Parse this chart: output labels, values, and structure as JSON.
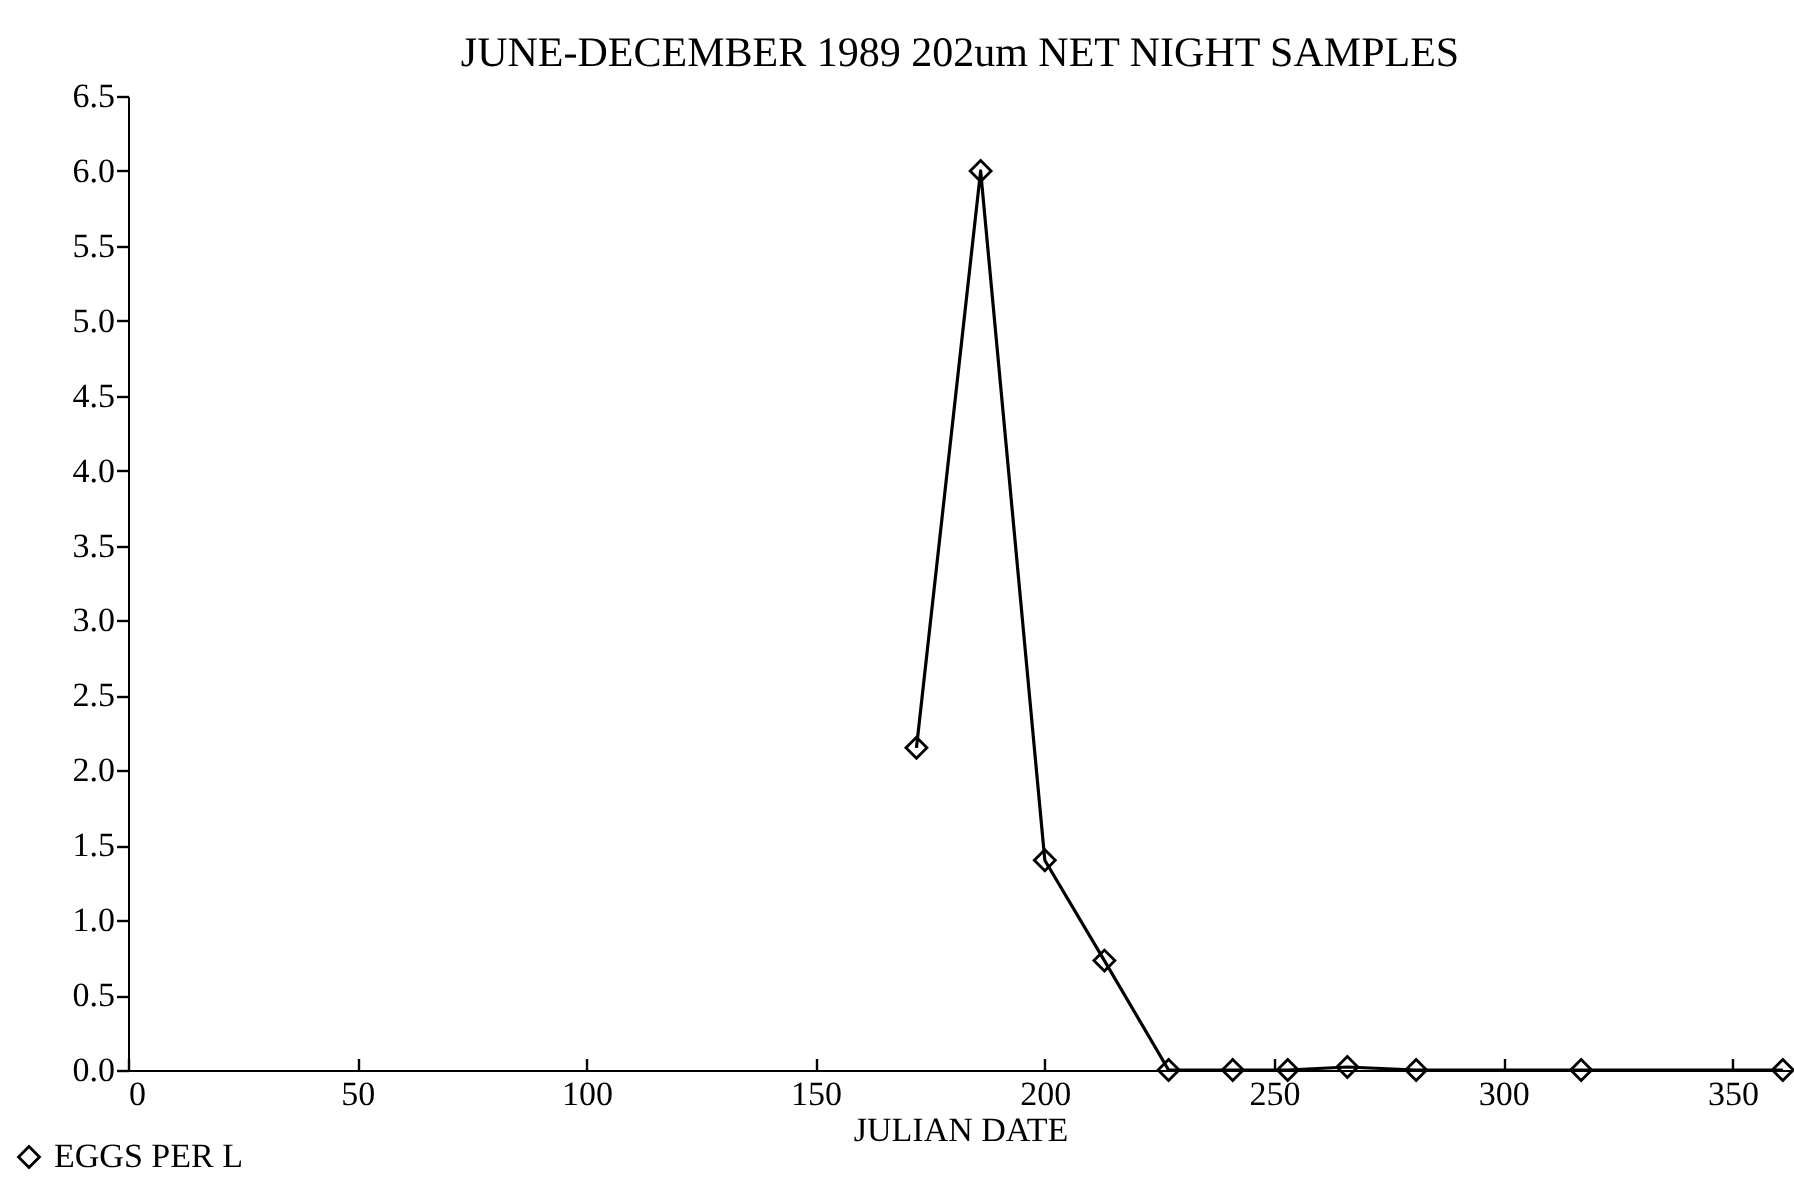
{
  "chart_data": {
    "type": "line",
    "title": "JUNE-DECEMBER 1989 202um NET NIGHT SAMPLES",
    "xlabel": "JULIAN DATE",
    "x": [
      172,
      186,
      200,
      213,
      227,
      241,
      253,
      266,
      281,
      317,
      361
    ],
    "series": [
      {
        "name": "EGGS PER L",
        "color": "#000000",
        "values": [
          2.15,
          6.0,
          1.4,
          0.73,
          0,
          0,
          0,
          0.02,
          0,
          0,
          0
        ]
      }
    ],
    "xlim": [
      0,
      363
    ],
    "xticks": [
      0,
      50,
      100,
      150,
      200,
      250,
      300,
      350
    ],
    "ylim": [
      0,
      6.5
    ],
    "yticks": [
      {
        "value": 0,
        "label": "0.0"
      },
      {
        "value": 0.5,
        "label": "0.5"
      },
      {
        "value": 1,
        "label": "1.0"
      },
      {
        "value": 1.5,
        "label": "1.5"
      },
      {
        "value": 2,
        "label": "2.0"
      },
      {
        "value": 2.5,
        "label": "2.5"
      },
      {
        "value": 3,
        "label": "3.0"
      },
      {
        "value": 3.5,
        "label": "3.5"
      },
      {
        "value": 4,
        "label": "4.0"
      },
      {
        "value": 4.5,
        "label": "4.5"
      },
      {
        "value": 5,
        "label": "5.0"
      },
      {
        "value": 5.5,
        "label": "5.5"
      },
      {
        "value": 6,
        "label": "6.0"
      },
      {
        "value": 6.5,
        "label": "6.5"
      }
    ],
    "marker": "diamond",
    "line_style": "solid",
    "legend": "bottom left",
    "grid": false
  }
}
